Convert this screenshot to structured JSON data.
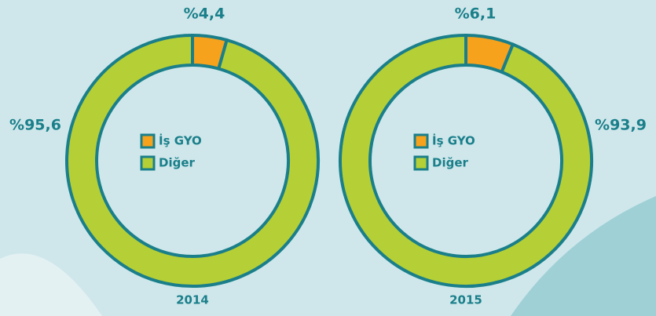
{
  "chart_data": [
    {
      "type": "pie",
      "title": "2014",
      "categories": [
        "İş GYO",
        "Diğer"
      ],
      "values": [
        4.4,
        95.6
      ],
      "value_labels": [
        "%4,4",
        "%95,6"
      ],
      "colors": [
        "#f6a21c",
        "#b5cf36"
      ]
    },
    {
      "type": "pie",
      "title": "2015",
      "categories": [
        "İş GYO",
        "Diğer"
      ],
      "values": [
        6.1,
        93.9
      ],
      "value_labels": [
        "%6,1",
        "%93,9"
      ],
      "colors": [
        "#f6a21c",
        "#b5cf36"
      ]
    }
  ]
}
